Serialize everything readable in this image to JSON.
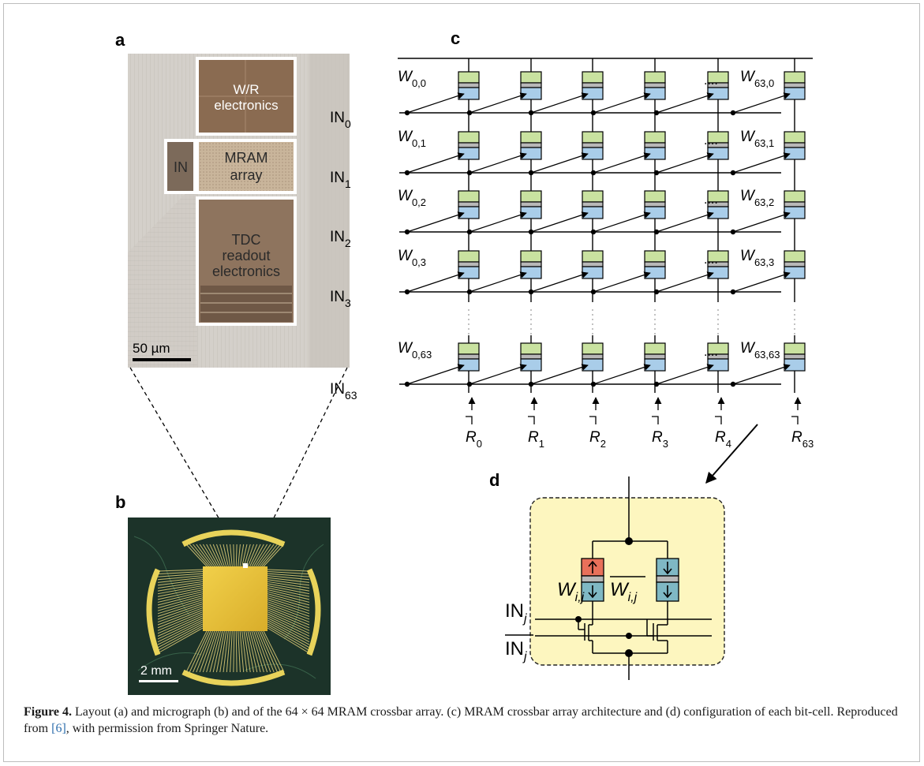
{
  "panels": {
    "a": {
      "label": "a",
      "blocks": {
        "wr": [
          "W/R",
          "electronics"
        ],
        "in": "IN",
        "mram": [
          "MRAM",
          "array"
        ],
        "tdc": [
          "TDC",
          "readout",
          "electronics"
        ]
      },
      "scalebar": "50 µm"
    },
    "b": {
      "label": "b",
      "scalebar": "2 mm"
    },
    "c": {
      "label": "c",
      "row_inputs": [
        {
          "base": "IN",
          "sub": "0"
        },
        {
          "base": "IN",
          "sub": "1"
        },
        {
          "base": "IN",
          "sub": "2"
        },
        {
          "base": "IN",
          "sub": "3"
        },
        {
          "base": "IN",
          "sub": "63"
        }
      ],
      "weights_left": [
        {
          "base": "W",
          "sub": "0,0"
        },
        {
          "base": "W",
          "sub": "0,1"
        },
        {
          "base": "W",
          "sub": "0,2"
        },
        {
          "base": "W",
          "sub": "0,3"
        },
        {
          "base": "W",
          "sub": "0,63"
        }
      ],
      "weights_right": [
        {
          "base": "W",
          "sub": "63,0"
        },
        {
          "base": "W",
          "sub": "63,1"
        },
        {
          "base": "W",
          "sub": "63,2"
        },
        {
          "base": "W",
          "sub": "63,3"
        },
        {
          "base": "W",
          "sub": "63,63"
        }
      ],
      "ellipsis": "....",
      "readouts": [
        {
          "base": "R",
          "sub": "0"
        },
        {
          "base": "R",
          "sub": "1"
        },
        {
          "base": "R",
          "sub": "2"
        },
        {
          "base": "R",
          "sub": "3"
        },
        {
          "base": "R",
          "sub": "4"
        },
        {
          "base": "R",
          "sub": "63"
        }
      ]
    },
    "d": {
      "label": "d",
      "weight": {
        "base": "W",
        "sub": "i,j"
      },
      "weight_bar": {
        "base": "W",
        "sub": "i,j"
      },
      "in": {
        "base": "IN",
        "sub": "j"
      },
      "in_bar": {
        "base": "IN",
        "sub": "j"
      }
    }
  },
  "caption": {
    "figure": "Figure 4.",
    "text_before_ref": " Layout (a) and micrograph (b) and of the 64 × 64 MRAM crossbar array. (c) MRAM crossbar array architecture and (d) configuration of each bit-cell. Reproduced from ",
    "ref": "[6]",
    "text_after_ref": ", with permission from Springer Nature."
  },
  "colors": {
    "mtj_free": "#c9e2a0",
    "mtj_barrier": "#b8b8b8",
    "mtj_fixed": "#a9cde9",
    "mtj_red": "#e8705a",
    "mtj_teal": "#7fb8c4",
    "cell_bg": "#fdf6bf",
    "chip_gold": "#e7c33b",
    "ref_link": "#2f6fad"
  }
}
